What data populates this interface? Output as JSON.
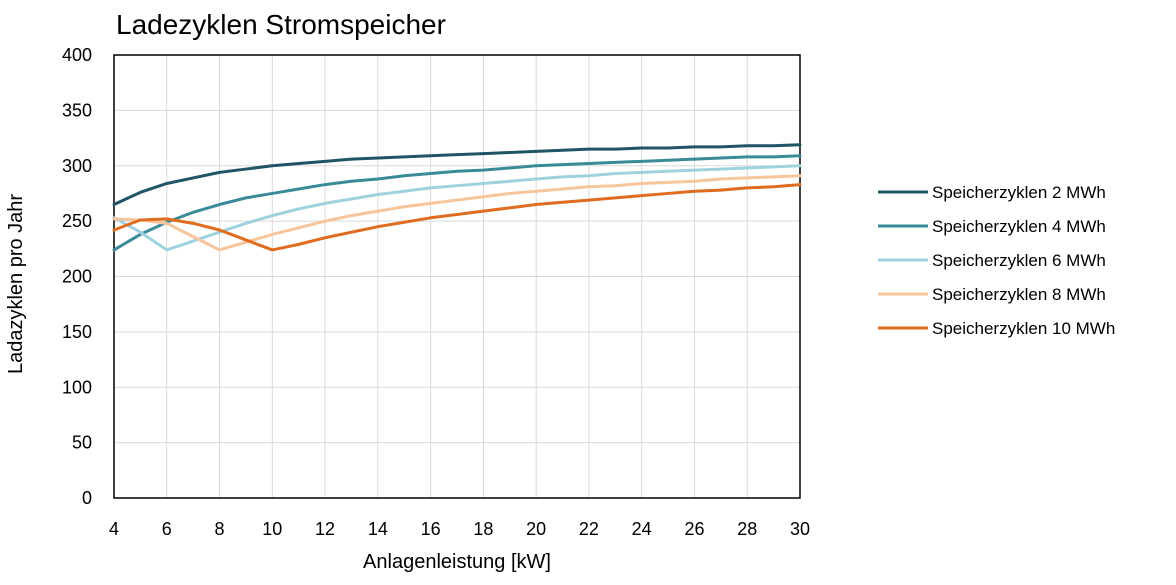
{
  "chart_data": {
    "type": "line",
    "title": "Ladezyklen Stromspeicher",
    "xlabel": "Anlagenleistung [kW]",
    "ylabel": "Ladazyklen pro Jahr",
    "xlim": [
      4,
      30
    ],
    "ylim": [
      0,
      400
    ],
    "xticks": [
      4,
      6,
      8,
      10,
      12,
      14,
      16,
      18,
      20,
      22,
      24,
      26,
      28,
      30
    ],
    "yticks": [
      0,
      50,
      100,
      150,
      200,
      250,
      300,
      350,
      400
    ],
    "grid": true,
    "legend_position": "right",
    "x": [
      4,
      5,
      6,
      7,
      8,
      9,
      10,
      11,
      12,
      13,
      14,
      15,
      16,
      17,
      18,
      19,
      20,
      21,
      22,
      23,
      24,
      25,
      26,
      27,
      28,
      29,
      30
    ],
    "series": [
      {
        "name": "Speicherzyklen 2 MWh",
        "color": "#1f5564",
        "values": [
          265,
          276,
          284,
          289,
          294,
          297,
          300,
          302,
          304,
          306,
          307,
          308,
          309,
          310,
          311,
          312,
          313,
          314,
          315,
          315,
          316,
          316,
          317,
          317,
          318,
          318,
          319
        ]
      },
      {
        "name": "Speicherzyklen 4 MWh",
        "color": "#3a8a9a",
        "values": [
          224,
          238,
          249,
          258,
          265,
          271,
          275,
          279,
          283,
          286,
          288,
          291,
          293,
          295,
          296,
          298,
          300,
          301,
          302,
          303,
          304,
          305,
          306,
          307,
          308,
          308,
          309
        ]
      },
      {
        "name": "Speicherzyklen 6 MWh",
        "color": "#9ed2de",
        "values": [
          253,
          240,
          224,
          232,
          240,
          248,
          255,
          261,
          266,
          270,
          274,
          277,
          280,
          282,
          284,
          286,
          288,
          290,
          291,
          293,
          294,
          295,
          296,
          297,
          298,
          299,
          300
        ]
      },
      {
        "name": "Speicherzyklen 8 MWh",
        "color": "#f7c59c",
        "values": [
          252,
          251,
          248,
          236,
          224,
          231,
          238,
          244,
          250,
          255,
          259,
          263,
          266,
          269,
          272,
          275,
          277,
          279,
          281,
          282,
          284,
          285,
          286,
          288,
          289,
          290,
          291
        ]
      },
      {
        "name": "Speicherzyklen 10 MWh",
        "color": "#e06c1f",
        "values": [
          242,
          251,
          252,
          248,
          242,
          233,
          224,
          229,
          235,
          240,
          245,
          249,
          253,
          256,
          259,
          262,
          265,
          267,
          269,
          271,
          273,
          275,
          277,
          278,
          280,
          281,
          283
        ]
      }
    ]
  }
}
